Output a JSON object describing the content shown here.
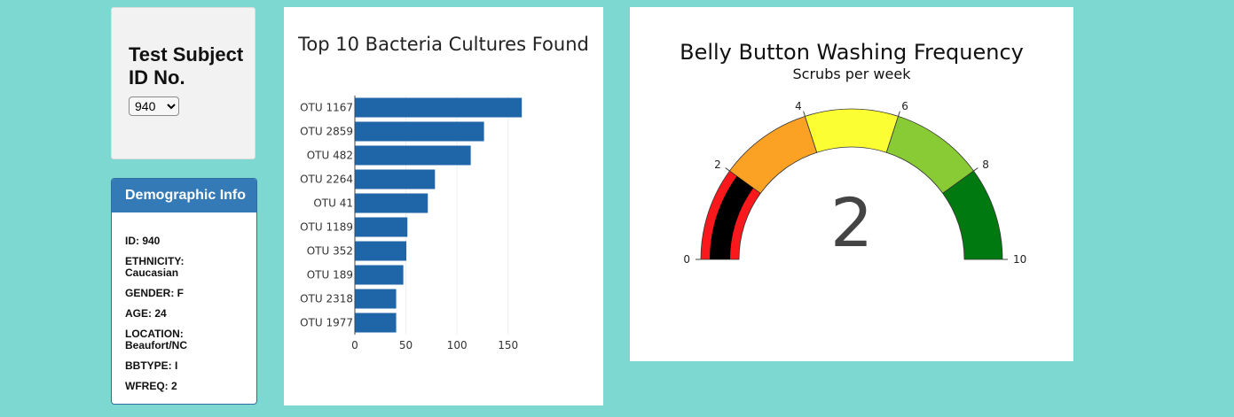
{
  "selector": {
    "title": "Test Subject ID No.",
    "selected": "940"
  },
  "demographics": {
    "title": "Demographic Info",
    "items": [
      "ID: 940",
      "ETHNICITY: Caucasian",
      "GENDER: F",
      "AGE: 24",
      "LOCATION: Beaufort/NC",
      "BBTYPE: I",
      "WFREQ: 2"
    ]
  },
  "colors": {
    "page_bg": "#7dd8d1",
    "bar": "#1f66a8",
    "panel_header": "#337ab7"
  },
  "chart_data": [
    {
      "type": "bar",
      "orientation": "horizontal",
      "title": "Top 10 Bacteria Cultures Found",
      "categories": [
        "OTU 1167",
        "OTU 2859",
        "OTU 482",
        "OTU 2264",
        "OTU 41",
        "OTU 1189",
        "OTU 352",
        "OTU 189",
        "OTU 2318",
        "OTU 1977"
      ],
      "values": [
        163,
        126,
        113,
        78,
        71,
        51,
        50,
        47,
        40,
        40
      ],
      "xlim": [
        0,
        165
      ],
      "xticks": [
        0,
        50,
        100,
        150
      ],
      "grid": true,
      "color": "#1f66a8"
    },
    {
      "type": "gauge",
      "title": "Belly Button Washing Frequency",
      "subtitle": "Scrubs per week",
      "value": 2,
      "range": [
        0,
        10
      ],
      "ticks": [
        0,
        2,
        4,
        6,
        8,
        10
      ],
      "steps": [
        {
          "range": [
            0,
            2
          ],
          "color": "#f9191c"
        },
        {
          "range": [
            2,
            4
          ],
          "color": "#fba225"
        },
        {
          "range": [
            4,
            6
          ],
          "color": "#fbfe33"
        },
        {
          "range": [
            6,
            8
          ],
          "color": "#89cb35"
        },
        {
          "range": [
            8,
            10
          ],
          "color": "#007a10"
        }
      ],
      "bar_color": "#000000"
    }
  ]
}
